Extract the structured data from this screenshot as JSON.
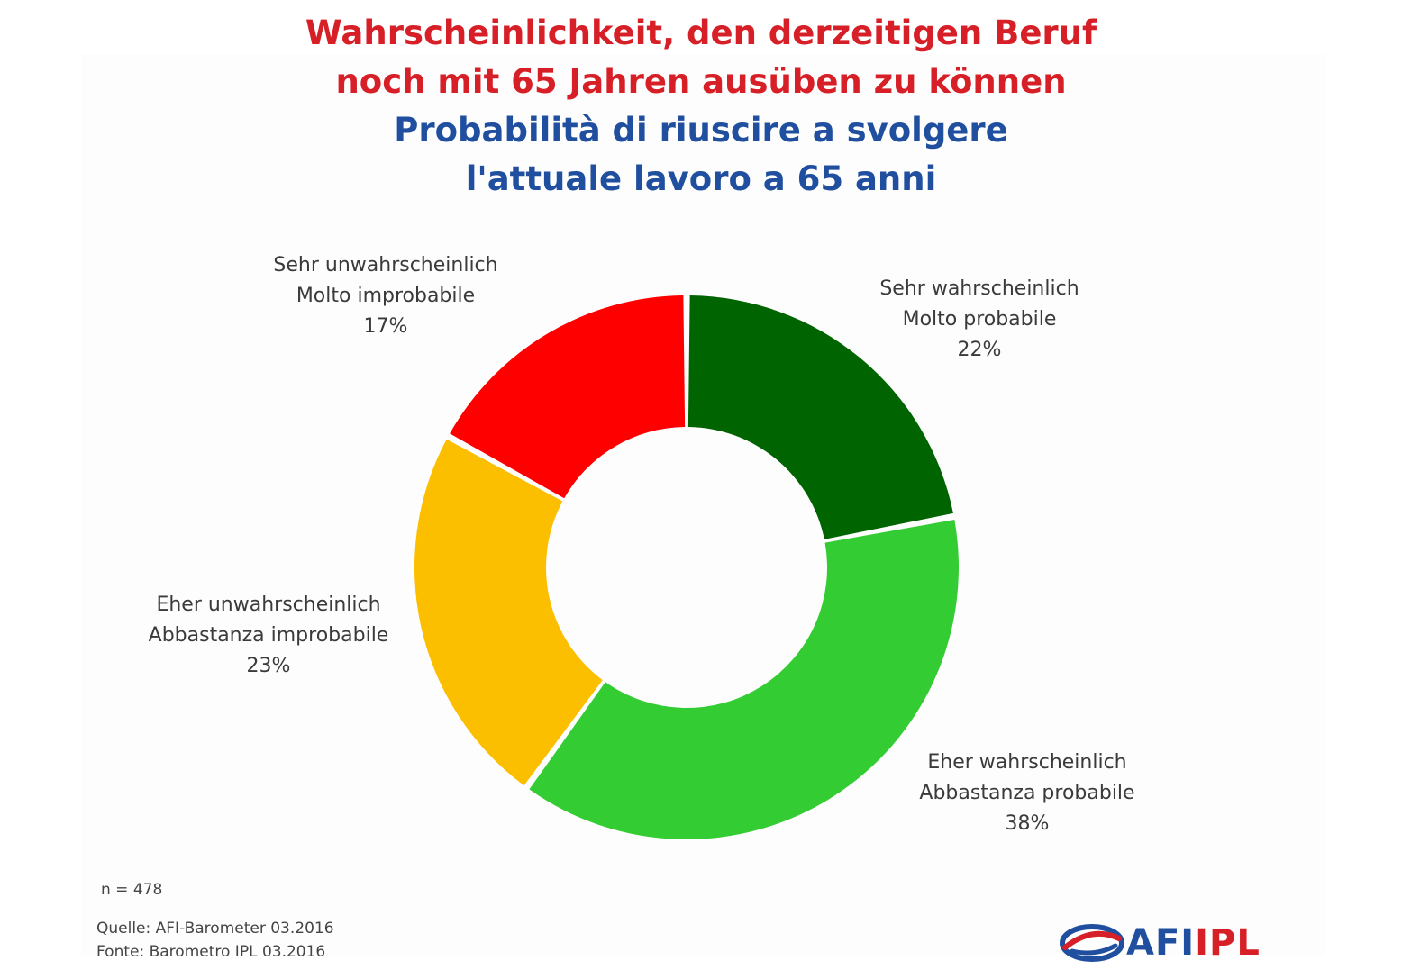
{
  "title": {
    "de_line1": "Wahrscheinlichkeit, den derzeitigen Beruf",
    "de_line2": "noch mit 65 Jahren ausüben zu können",
    "it_line1": "Probabilità di riuscire a svolgere",
    "it_line2": "l'attuale lavoro a 65 anni"
  },
  "chart_data": {
    "type": "pie",
    "subtype": "donut",
    "slices": [
      {
        "label_de": "Sehr wahrscheinlich",
        "label_it": "Molto probabile",
        "value": 22,
        "value_label": "22%",
        "color": "#006400"
      },
      {
        "label_de": "Eher wahrscheinlich",
        "label_it": "Abbastanza probabile",
        "value": 38,
        "value_label": "38%",
        "color": "#33cc33"
      },
      {
        "label_de": "Eher unwahrscheinlich",
        "label_it": "Abbastanza improbabile",
        "value": 23,
        "value_label": "23%",
        "color": "#fcbf00"
      },
      {
        "label_de": "Sehr unwahrscheinlich",
        "label_it": "Molto improbabile",
        "value": 17,
        "value_label": "17%",
        "color": "#ff0000"
      }
    ]
  },
  "notes": {
    "sample": "n = 478",
    "source_de": "Quelle: AFI-Barometer 03.2016",
    "source_it": "Fonte: Barometro IPL 03.2016"
  },
  "logo": {
    "text_afi": "AFI",
    "text_ipl": "IPL",
    "color_afi": "#1f4f9e",
    "color_ipl": "#d71f27"
  },
  "colors": {
    "title_de": "#d71f27",
    "title_it": "#1f4f9e"
  }
}
